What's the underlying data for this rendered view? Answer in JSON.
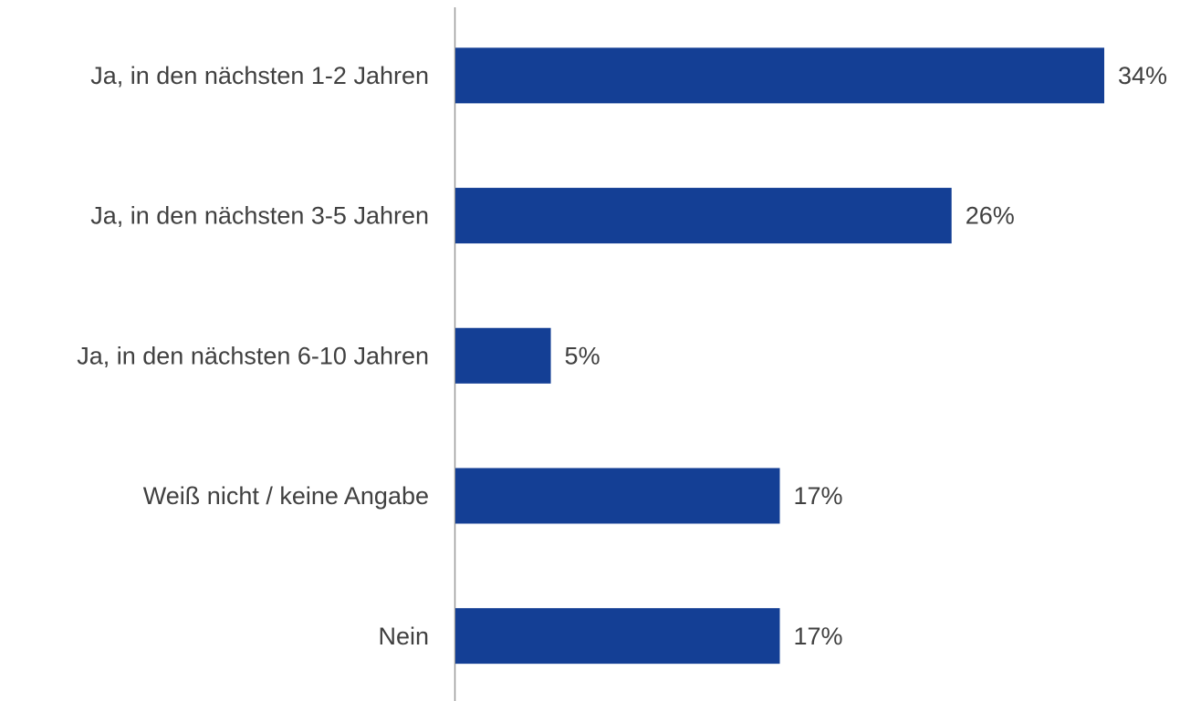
{
  "chart_data": {
    "type": "bar",
    "orientation": "horizontal",
    "categories": [
      "Ja, in den nächsten 1-2 Jahren",
      "Ja, in den nächsten 3-5 Jahren",
      "Ja, in den nächsten 6-10 Jahren",
      "Weiß nicht / keine Angabe",
      "Nein"
    ],
    "values": [
      34,
      26,
      5,
      17,
      17
    ],
    "value_labels": [
      "34%",
      "26%",
      "5%",
      "17%",
      "17%"
    ],
    "color": "#143f95",
    "grid": false
  }
}
